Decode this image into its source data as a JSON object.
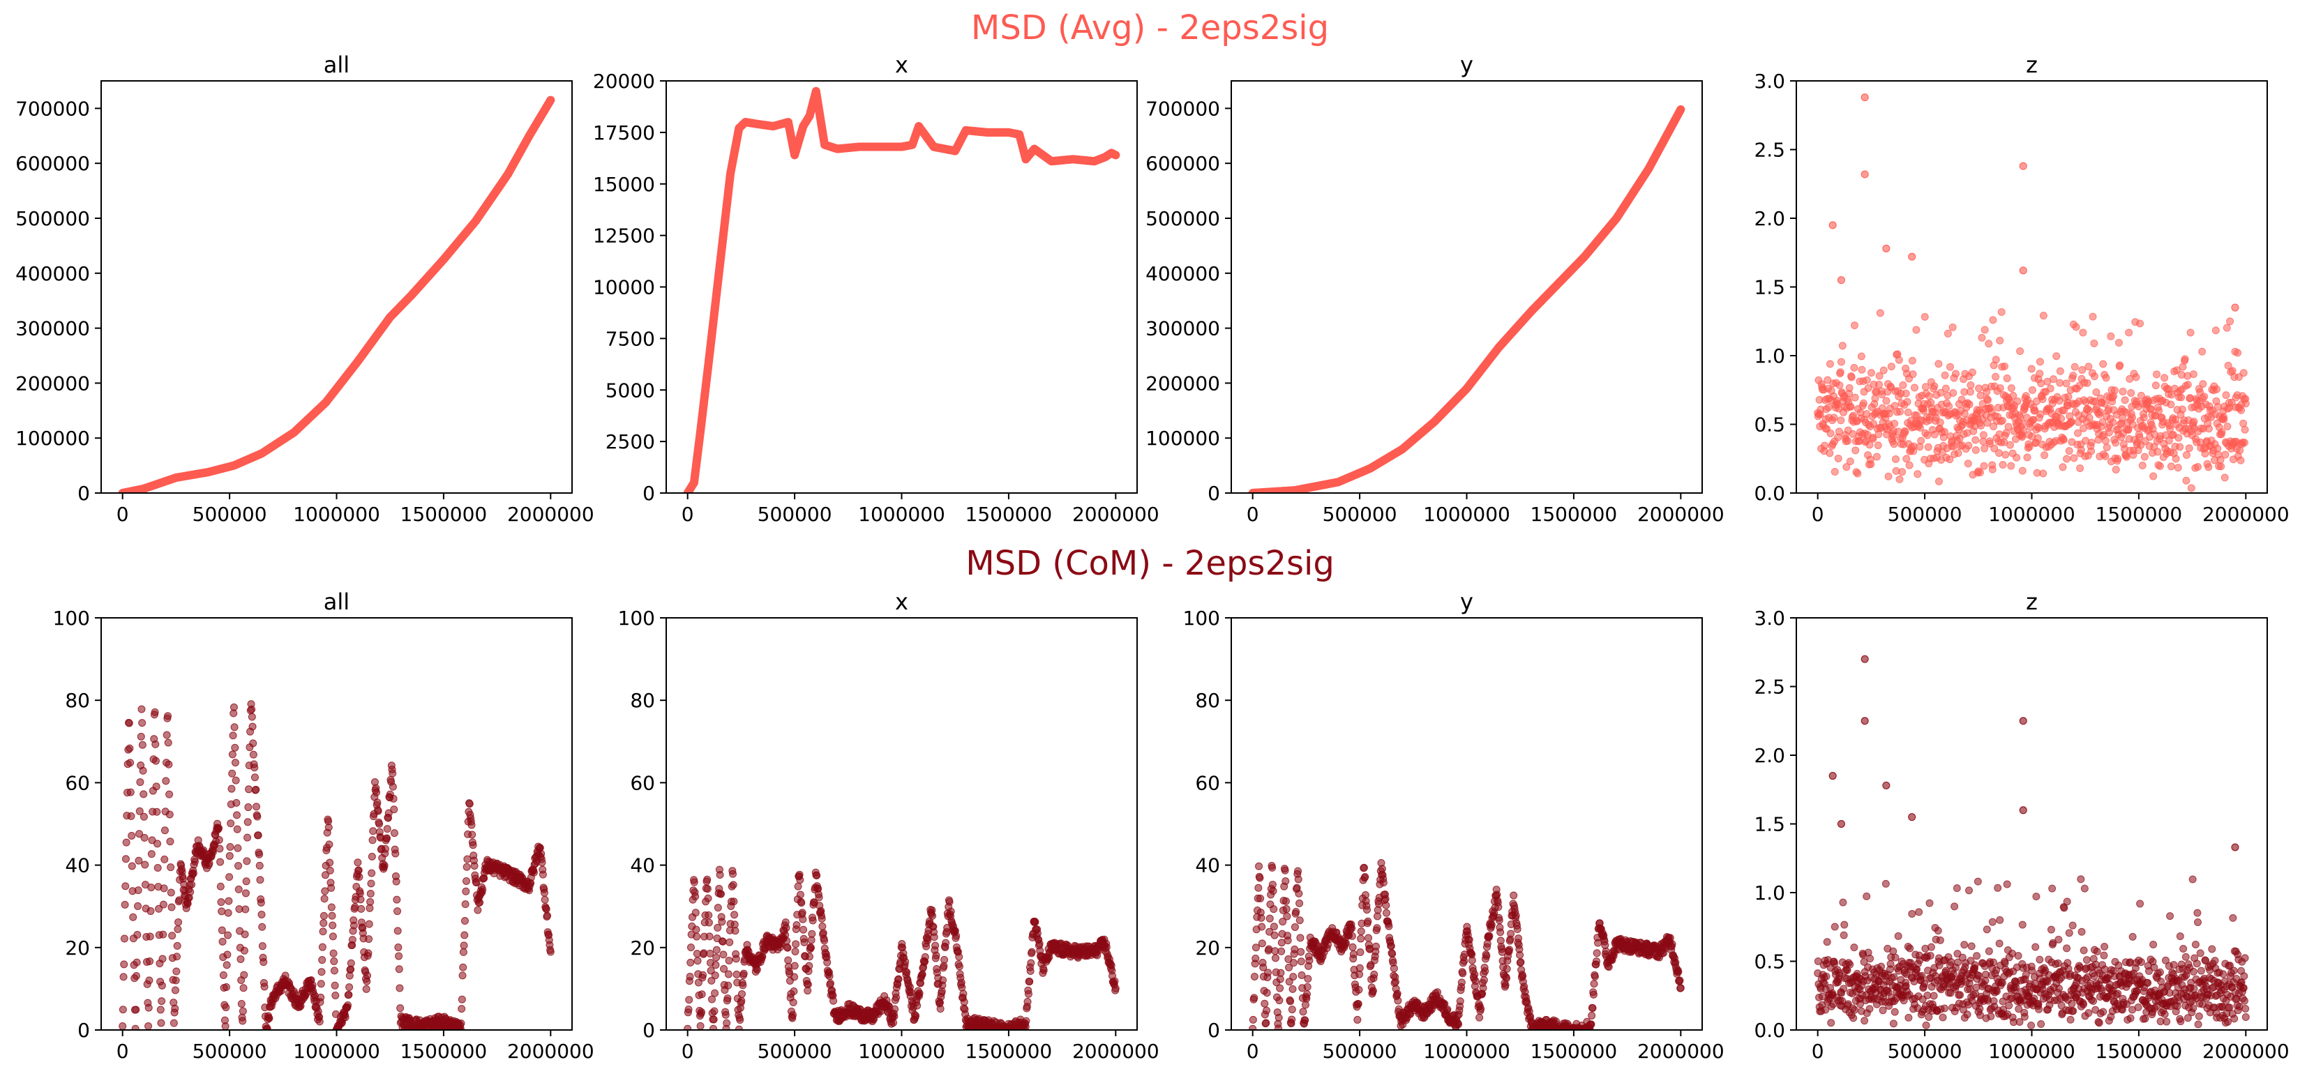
{
  "figure": {
    "title_top": "MSD (Avg) - 2eps2sig",
    "title_bottom": "MSD (CoM) - 2eps2sig",
    "color_top": "#fe5b52",
    "color_bottom": "#8b0a14"
  },
  "chart_data": [
    {
      "type": "line",
      "title": "all",
      "xlim": [
        -100000,
        2100000
      ],
      "ylim": [
        0,
        750000
      ],
      "xticks": [
        "0",
        "500000",
        "1000000",
        "1500000",
        "2000000"
      ],
      "xtick_values": [
        0,
        500000,
        1000000,
        1500000,
        2000000
      ],
      "yticks": [
        "0",
        "100000",
        "200000",
        "300000",
        "400000",
        "500000",
        "600000",
        "700000"
      ],
      "ytick_values": [
        0,
        100000,
        200000,
        300000,
        400000,
        500000,
        600000,
        700000
      ],
      "series": [
        {
          "color": "#fe5b52",
          "x": [
            0,
            100000,
            250000,
            400000,
            520000,
            650000,
            800000,
            950000,
            1100000,
            1250000,
            1350000,
            1500000,
            1650000,
            1800000,
            1900000,
            2000000
          ],
          "y": [
            0,
            8000,
            28000,
            38000,
            50000,
            72000,
            110000,
            165000,
            240000,
            320000,
            360000,
            425000,
            495000,
            580000,
            650000,
            715000
          ]
        }
      ]
    },
    {
      "type": "line",
      "title": "x",
      "xlim": [
        -100000,
        2100000
      ],
      "ylim": [
        0,
        20000
      ],
      "xticks": [
        "0",
        "500000",
        "1000000",
        "1500000",
        "2000000"
      ],
      "xtick_values": [
        0,
        500000,
        1000000,
        1500000,
        2000000
      ],
      "yticks": [
        "0",
        "2500",
        "5000",
        "7500",
        "10000",
        "12500",
        "15000",
        "17500",
        "20000"
      ],
      "ytick_values": [
        0,
        2500,
        5000,
        7500,
        10000,
        12500,
        15000,
        17500,
        20000
      ],
      "series": [
        {
          "color": "#fe5b52",
          "x": [
            0,
            30000,
            60000,
            100000,
            150000,
            200000,
            240000,
            270000,
            330000,
            400000,
            470000,
            500000,
            540000,
            570000,
            600000,
            640000,
            700000,
            800000,
            900000,
            1000000,
            1050000,
            1080000,
            1150000,
            1250000,
            1300000,
            1400000,
            1500000,
            1550000,
            1580000,
            1620000,
            1700000,
            1800000,
            1900000,
            1950000,
            1980000,
            2000000
          ],
          "y": [
            0,
            500,
            3000,
            6500,
            11000,
            15500,
            17700,
            18000,
            17900,
            17800,
            18000,
            16400,
            17800,
            18300,
            19500,
            16900,
            16700,
            16800,
            16800,
            16800,
            16900,
            17800,
            16800,
            16600,
            17600,
            17500,
            17500,
            17400,
            16200,
            16700,
            16100,
            16200,
            16100,
            16300,
            16500,
            16400
          ]
        }
      ]
    },
    {
      "type": "line",
      "title": "y",
      "xlim": [
        -100000,
        2100000
      ],
      "ylim": [
        0,
        750000
      ],
      "xticks": [
        "0",
        "500000",
        "1000000",
        "1500000",
        "2000000"
      ],
      "xtick_values": [
        0,
        500000,
        1000000,
        1500000,
        2000000
      ],
      "yticks": [
        "0",
        "100000",
        "200000",
        "300000",
        "400000",
        "500000",
        "600000",
        "700000"
      ],
      "ytick_values": [
        0,
        100000,
        200000,
        300000,
        400000,
        500000,
        600000,
        700000
      ],
      "series": [
        {
          "color": "#fe5b52",
          "x": [
            0,
            200000,
            400000,
            550000,
            700000,
            850000,
            1000000,
            1150000,
            1300000,
            1400000,
            1550000,
            1700000,
            1850000,
            2000000
          ],
          "y": [
            0,
            5000,
            20000,
            45000,
            80000,
            130000,
            190000,
            265000,
            330000,
            370000,
            430000,
            500000,
            590000,
            698000
          ]
        }
      ]
    },
    {
      "type": "scatter",
      "title": "z",
      "xlim": [
        -100000,
        2100000
      ],
      "ylim": [
        0,
        3.0
      ],
      "xticks": [
        "0",
        "500000",
        "1000000",
        "1500000",
        "2000000"
      ],
      "xtick_values": [
        0,
        500000,
        1000000,
        1500000,
        2000000
      ],
      "yticks": [
        "0.0",
        "0.5",
        "1.0",
        "1.5",
        "2.0",
        "2.5",
        "3.0"
      ],
      "ytick_values": [
        0,
        0.5,
        1.0,
        1.5,
        2.0,
        2.5,
        3.0
      ],
      "series": [
        {
          "color": "#fe5b52",
          "x": [
            0,
            2000000
          ],
          "y": [
            0.55,
            0.5
          ],
          "y_spread": 0.25,
          "n_points": 1000,
          "outliers": [
            [
              220000,
              2.88
            ],
            [
              220000,
              2.32
            ],
            [
              960000,
              2.38
            ],
            [
              960000,
              1.62
            ],
            [
              70000,
              1.95
            ],
            [
              320000,
              1.78
            ],
            [
              440000,
              1.72
            ],
            [
              1950000,
              1.35
            ],
            [
              110000,
              1.55
            ]
          ]
        }
      ]
    },
    {
      "type": "scatter",
      "title": "all",
      "xlim": [
        -100000,
        2100000
      ],
      "ylim": [
        0,
        100
      ],
      "xticks": [
        "0",
        "500000",
        "1000000",
        "1500000",
        "2000000"
      ],
      "xtick_values": [
        0,
        500000,
        1000000,
        1500000,
        2000000
      ],
      "yticks": [
        "0",
        "20",
        "40",
        "60",
        "80",
        "100"
      ],
      "ytick_values": [
        0,
        20,
        40,
        60,
        80,
        100
      ],
      "series": [
        {
          "color": "#8b0a14",
          "x": [
            0,
            30000,
            60000,
            90000,
            120000,
            150000,
            180000,
            210000,
            240000,
            270000,
            300000,
            350000,
            400000,
            450000,
            480000,
            520000,
            560000,
            600000,
            640000,
            670000,
            700000,
            760000,
            820000,
            880000,
            920000,
            960000,
            1000000,
            1050000,
            1100000,
            1140000,
            1180000,
            1220000,
            1260000,
            1300000,
            1400000,
            1500000,
            1580000,
            1620000,
            1660000,
            1700000,
            1800000,
            1900000,
            1950000,
            2000000
          ],
          "y": [
            0,
            78,
            0,
            79,
            0,
            79,
            0,
            79,
            0,
            40,
            30,
            45,
            40,
            50,
            0,
            80,
            0,
            80,
            40,
            0,
            8,
            12,
            6,
            12,
            2,
            52,
            0,
            5,
            40,
            10,
            60,
            38,
            65,
            2,
            1,
            2,
            0,
            56,
            30,
            40,
            38,
            35,
            45,
            18
          ]
        }
      ]
    },
    {
      "type": "scatter",
      "title": "x",
      "xlim": [
        -100000,
        2100000
      ],
      "ylim": [
        0,
        100
      ],
      "xticks": [
        "0",
        "500000",
        "1000000",
        "1500000",
        "2000000"
      ],
      "xtick_values": [
        0,
        500000,
        1000000,
        1500000,
        2000000
      ],
      "yticks": [
        "0",
        "20",
        "40",
        "60",
        "80",
        "100"
      ],
      "ytick_values": [
        0,
        20,
        40,
        60,
        80,
        100
      ],
      "series": [
        {
          "color": "#8b0a14",
          "x": [
            0,
            30000,
            60000,
            90000,
            120000,
            150000,
            180000,
            210000,
            240000,
            270000,
            320000,
            370000,
            420000,
            460000,
            490000,
            520000,
            560000,
            600000,
            640000,
            690000,
            750000,
            800000,
            860000,
            920000,
            960000,
            1000000,
            1060000,
            1100000,
            1140000,
            1180000,
            1220000,
            1260000,
            1300000,
            1400000,
            1500000,
            1580000,
            1620000,
            1660000,
            1700000,
            1800000,
            1900000,
            1950000,
            2000000
          ],
          "y": [
            0,
            38,
            0,
            38,
            0,
            39,
            0,
            39,
            0,
            20,
            15,
            22,
            20,
            25,
            2,
            39,
            10,
            38,
            20,
            3,
            5,
            4,
            3,
            7,
            2,
            20,
            3,
            15,
            30,
            5,
            31,
            20,
            2,
            1,
            0,
            2,
            27,
            15,
            20,
            19,
            19,
            21,
            10
          ]
        }
      ]
    },
    {
      "type": "scatter",
      "title": "y",
      "xlim": [
        -100000,
        2100000
      ],
      "ylim": [
        0,
        100
      ],
      "xticks": [
        "0",
        "500000",
        "1000000",
        "1500000",
        "2000000"
      ],
      "xtick_values": [
        0,
        500000,
        1000000,
        1500000,
        2000000
      ],
      "yticks": [
        "0",
        "20",
        "40",
        "60",
        "80",
        "100"
      ],
      "ytick_values": [
        0,
        20,
        40,
        60,
        80,
        100
      ],
      "series": [
        {
          "color": "#8b0a14",
          "x": [
            0,
            30000,
            60000,
            90000,
            120000,
            150000,
            180000,
            210000,
            240000,
            270000,
            320000,
            370000,
            420000,
            460000,
            490000,
            520000,
            560000,
            600000,
            640000,
            690000,
            750000,
            800000,
            860000,
            920000,
            960000,
            1000000,
            1060000,
            1100000,
            1140000,
            1180000,
            1220000,
            1260000,
            1300000,
            1400000,
            1500000,
            1580000,
            1620000,
            1660000,
            1700000,
            1800000,
            1900000,
            1950000,
            2000000
          ],
          "y": [
            0,
            40,
            0,
            40,
            0,
            40,
            0,
            40,
            0,
            22,
            18,
            24,
            20,
            26,
            3,
            40,
            8,
            40,
            22,
            2,
            6,
            4,
            8,
            3,
            2,
            25,
            4,
            22,
            33,
            10,
            32,
            12,
            1,
            1,
            0,
            1,
            27,
            16,
            21,
            20,
            19,
            22,
            11
          ]
        }
      ]
    },
    {
      "type": "scatter",
      "title": "z",
      "xlim": [
        -100000,
        2100000
      ],
      "ylim": [
        0,
        3.0
      ],
      "xticks": [
        "0",
        "500000",
        "1000000",
        "1500000",
        "2000000"
      ],
      "xtick_values": [
        0,
        500000,
        1000000,
        1500000,
        2000000
      ],
      "yticks": [
        "0.0",
        "0.5",
        "1.0",
        "1.5",
        "2.0",
        "2.5",
        "3.0"
      ],
      "ytick_values": [
        0,
        0.5,
        1.0,
        1.5,
        2.0,
        2.5,
        3.0
      ],
      "series": [
        {
          "color": "#8b0a14",
          "x": [
            0,
            2000000
          ],
          "y": [
            0.32,
            0.3
          ],
          "y_spread": 0.18,
          "n_points": 1000,
          "outliers": [
            [
              220000,
              2.7
            ],
            [
              220000,
              2.25
            ],
            [
              960000,
              2.25
            ],
            [
              960000,
              1.6
            ],
            [
              70000,
              1.85
            ],
            [
              320000,
              1.78
            ],
            [
              440000,
              1.55
            ],
            [
              1950000,
              1.33
            ],
            [
              110000,
              1.5
            ]
          ]
        }
      ]
    }
  ]
}
